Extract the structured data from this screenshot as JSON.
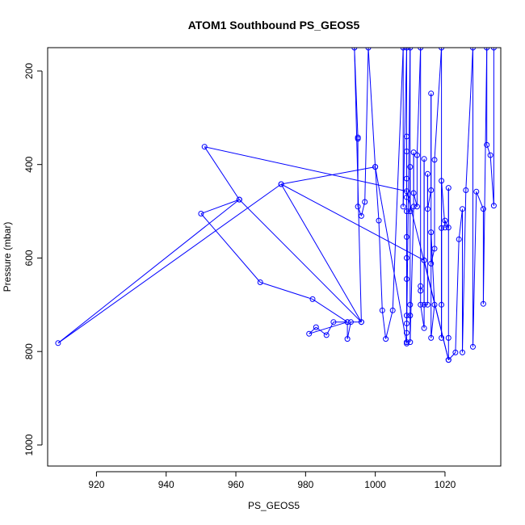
{
  "chart_data": {
    "type": "line",
    "title": "ATOM1 Southbound PS_GEOS5",
    "xlabel": "PS_GEOS5",
    "ylabel": "Pressure (mbar)",
    "xlim": [
      906,
      1036
    ],
    "ylim": [
      1045,
      150
    ],
    "y_reversed": true,
    "x_ticks": [
      920,
      940,
      960,
      980,
      1000,
      1020
    ],
    "x_tick_labels": [
      "920",
      "940",
      "960",
      "980",
      "1000",
      "1020"
    ],
    "y_ticks": [
      200,
      400,
      600,
      800,
      1000
    ],
    "y_tick_labels": [
      "200",
      "400",
      "600",
      "800",
      "1000"
    ],
    "grid": false,
    "series_color": "#0000ff",
    "markers": "open-circle",
    "series": [
      {
        "values": [
          [
            1034,
            150
          ],
          [
            1034,
            488
          ],
          [
            1033,
            380
          ],
          [
            1032,
            358
          ],
          [
            1032,
            150
          ],
          [
            1031,
            698
          ],
          [
            1031,
            495
          ],
          [
            1029,
            458
          ],
          [
            1028,
            790
          ],
          [
            1028,
            150
          ],
          [
            1026,
            455
          ],
          [
            1025,
            802
          ],
          [
            1025,
            495
          ],
          [
            1024,
            560
          ],
          [
            1023,
            802
          ],
          [
            1021,
            818
          ],
          [
            1021,
            771
          ],
          [
            1021,
            450
          ],
          [
            1021,
            535
          ],
          [
            1020,
            520
          ],
          [
            1020,
            535
          ],
          [
            1019,
            435
          ],
          [
            1019,
            771
          ],
          [
            1019,
            536
          ],
          [
            1019,
            700
          ],
          [
            1019,
            150
          ],
          [
            1017,
            390
          ],
          [
            1017,
            580
          ],
          [
            1016,
            612
          ],
          [
            1016,
            545
          ],
          [
            1017,
            700
          ],
          [
            1016,
            771
          ],
          [
            1016,
            248
          ],
          [
            1016,
            455
          ],
          [
            1015,
            495
          ],
          [
            1015,
            420
          ],
          [
            1015,
            700
          ],
          [
            1014,
            700
          ],
          [
            1014,
            605
          ],
          [
            1014,
            388
          ],
          [
            1014,
            750
          ],
          [
            1013,
            700
          ],
          [
            1013,
            660
          ],
          [
            1013,
            670
          ],
          [
            1013,
            150
          ],
          [
            1012,
            380
          ],
          [
            1012,
            490
          ],
          [
            1011,
            461
          ],
          [
            1011,
            374
          ],
          [
            1011,
            490
          ],
          [
            1010,
            780
          ],
          [
            1010,
            723
          ],
          [
            1010,
            700
          ],
          [
            1010,
            405
          ],
          [
            1010,
            500
          ],
          [
            1010,
            150
          ],
          [
            1009,
            760
          ],
          [
            1009,
            740
          ],
          [
            1009,
            780
          ],
          [
            1009,
            723
          ],
          [
            1009,
            645
          ],
          [
            1009,
            600
          ],
          [
            1009,
            555
          ],
          [
            1009,
            500
          ],
          [
            1009,
            470
          ],
          [
            1009,
            430
          ],
          [
            1009,
            372
          ],
          [
            1009,
            340
          ],
          [
            1009,
            150
          ],
          [
            1008,
            490
          ],
          [
            1008,
            150
          ],
          [
            1005,
            712
          ],
          [
            1003,
            773
          ],
          [
            1002,
            712
          ],
          [
            1001,
            520
          ],
          [
            1000,
            405
          ],
          [
            998,
            150
          ],
          [
            997,
            480
          ],
          [
            996,
            510
          ],
          [
            995,
            490
          ],
          [
            995,
            345
          ],
          [
            995,
            342
          ],
          [
            994,
            150
          ],
          [
            996,
            737
          ],
          [
            993,
            737
          ],
          [
            992,
            773
          ],
          [
            992,
            737
          ],
          [
            988,
            737
          ],
          [
            986,
            765
          ],
          [
            983,
            748
          ],
          [
            981,
            762
          ],
          [
            992,
            737
          ],
          [
            982,
            688
          ],
          [
            967,
            652
          ],
          [
            950,
            505
          ],
          [
            961,
            475
          ],
          [
            996,
            737
          ],
          [
            973,
            442
          ],
          [
            909,
            782
          ],
          [
            961,
            475
          ],
          [
            951,
            362
          ],
          [
            1009,
            457
          ],
          [
            1021,
            818
          ],
          [
            1014,
            605
          ],
          [
            973,
            442
          ],
          [
            1000,
            405
          ],
          [
            1009,
            783
          ]
        ]
      }
    ]
  }
}
